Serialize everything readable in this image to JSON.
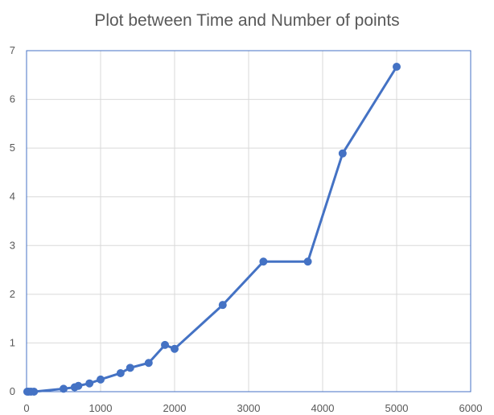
{
  "chart_data": {
    "type": "scatter",
    "title": "Plot between Time and Number of points",
    "xlabel": "",
    "ylabel": "",
    "xlim": [
      0,
      6000
    ],
    "ylim": [
      0,
      7
    ],
    "xticks": [
      0,
      1000,
      2000,
      3000,
      4000,
      5000,
      6000
    ],
    "yticks": [
      0,
      1,
      2,
      3,
      4,
      5,
      6,
      7
    ],
    "grid": true,
    "legend": "none",
    "series": [
      {
        "color": "#4472C4",
        "lines": true,
        "markers": true,
        "x": [
          10,
          30,
          60,
          100,
          500,
          650,
          700,
          850,
          1000,
          1270,
          1400,
          1650,
          1870,
          2000,
          2650,
          3200,
          3800,
          4270,
          5000
        ],
        "y": [
          0.0,
          0.0,
          0.0,
          0.0,
          0.06,
          0.09,
          0.12,
          0.17,
          0.25,
          0.38,
          0.49,
          0.59,
          0.96,
          0.88,
          1.78,
          2.67,
          2.67,
          4.89,
          6.67
        ]
      }
    ]
  }
}
